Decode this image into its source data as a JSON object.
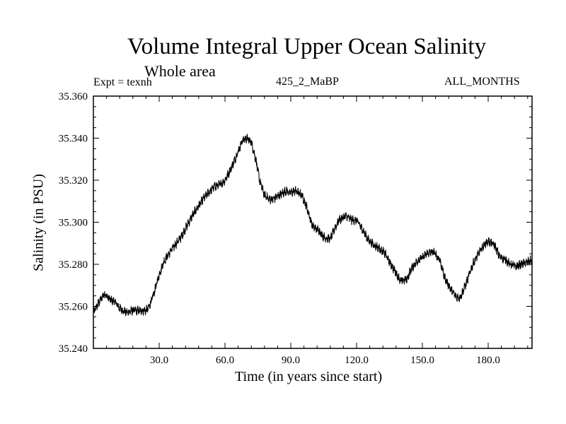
{
  "chart_data": {
    "type": "line",
    "title": "Volume Integral Upper Ocean Salinity",
    "subtitle": "Whole area",
    "annotations": {
      "left": "Expt = texnh",
      "center": "425_2_MaBP",
      "right": "ALL_MONTHS"
    },
    "xlabel": "Time (in years since start)",
    "ylabel": "Salinity (in PSU)",
    "xlim": [
      0,
      200
    ],
    "ylim": [
      35.24,
      35.36
    ],
    "xticks": [
      30,
      60,
      90,
      120,
      150,
      180
    ],
    "xtick_labels": [
      "30.0",
      "60.0",
      "90.0",
      "120.0",
      "150.0",
      "180.0"
    ],
    "yticks": [
      35.24,
      35.26,
      35.28,
      35.3,
      35.32,
      35.34,
      35.36
    ],
    "ytick_labels": [
      "35.240",
      "35.260",
      "35.280",
      "35.300",
      "35.320",
      "35.340",
      "35.360"
    ],
    "noise_amplitude": 0.0015,
    "series": [
      {
        "name": "Salinity",
        "x": [
          0,
          2,
          5,
          8,
          10,
          12,
          15,
          18,
          20,
          22,
          24,
          25,
          27,
          30,
          32,
          35,
          40,
          45,
          50,
          55,
          58,
          60,
          62,
          65,
          68,
          70,
          72,
          74,
          76,
          78,
          80,
          82,
          85,
          88,
          90,
          92,
          95,
          97,
          100,
          103,
          105,
          108,
          110,
          112,
          115,
          118,
          120,
          123,
          125,
          128,
          130,
          133,
          135,
          138,
          140,
          143,
          145,
          148,
          150,
          152,
          155,
          158,
          160,
          163,
          165,
          167,
          168,
          170,
          173,
          175,
          178,
          180,
          183,
          185,
          188,
          190,
          193,
          195,
          198,
          200
        ],
        "values": [
          35.257,
          35.261,
          35.266,
          35.263,
          35.262,
          35.259,
          35.257,
          35.258,
          35.258,
          35.258,
          35.258,
          35.259,
          35.264,
          35.275,
          35.281,
          35.286,
          35.293,
          35.303,
          35.311,
          35.317,
          35.318,
          35.32,
          35.324,
          35.331,
          35.339,
          35.34,
          35.338,
          35.33,
          35.319,
          35.313,
          35.311,
          35.311,
          35.313,
          35.315,
          35.314,
          35.315,
          35.313,
          35.308,
          35.298,
          35.296,
          35.293,
          35.292,
          35.297,
          35.301,
          35.303,
          35.301,
          35.301,
          35.296,
          35.292,
          35.289,
          35.288,
          35.285,
          35.281,
          35.276,
          35.272,
          35.273,
          35.278,
          35.282,
          35.283,
          35.285,
          35.286,
          35.282,
          35.274,
          35.268,
          35.265,
          35.264,
          35.266,
          35.271,
          35.28,
          35.284,
          35.289,
          35.291,
          35.289,
          35.284,
          35.282,
          35.28,
          35.279,
          35.28,
          35.281,
          35.282
        ]
      }
    ]
  }
}
